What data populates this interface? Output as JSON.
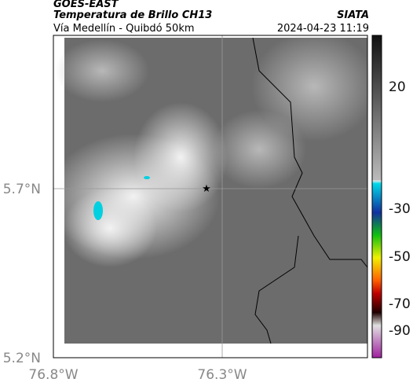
{
  "header": {
    "title": "GOES-EAST",
    "subtitle": "Temperatura de Brillo CH13",
    "location": "Vía Medellín - Quibdó 50km",
    "source": "SIATA",
    "datetime": "2024-04-23 11:19"
  },
  "map": {
    "lat_labels": [
      "5.7°N",
      "5.2°N"
    ],
    "lon_labels": [
      "76.8°W",
      "76.3°W"
    ]
  },
  "colorbar": {
    "ticks": [
      20,
      -30,
      -50,
      -70,
      -90
    ]
  }
}
